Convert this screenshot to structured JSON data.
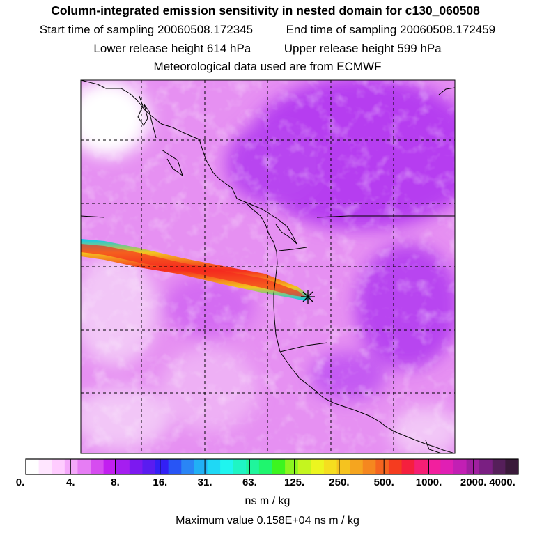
{
  "header": {
    "title": "Column-integrated emission sensitivity in nested domain for c130_060508",
    "start_label": "Start time of sampling",
    "start_value": "20060508.172345",
    "end_label": "End time of sampling",
    "end_value": "20060508.172459",
    "lower_label": "Lower release height",
    "lower_value": "614 hPa",
    "upper_label": "Upper release height",
    "upper_value": "599 hPa",
    "met_line": "Meteorological data used are from ECMWF"
  },
  "chart_data": {
    "type": "heatmap",
    "title": "Column-integrated emission sensitivity in nested domain for c130_060508",
    "grid": true,
    "grid_style": "dashed",
    "colorbar": {
      "orientation": "horizontal",
      "position": "bottom",
      "units": "ns m / kg",
      "labels": [
        "0.",
        "4.",
        "8.",
        "16.",
        "31.",
        "63.",
        "125.",
        "250.",
        "500.",
        "1000.",
        "2000.",
        "4000."
      ],
      "label_values": [
        0,
        4,
        8,
        16,
        31,
        63,
        125,
        250,
        500,
        1000,
        2000,
        4000
      ],
      "colors": [
        "#ffffff",
        "#ffe6ff",
        "#ffccff",
        "#f4a8fa",
        "#e67df4",
        "#d64cf0",
        "#c21ff0",
        "#a51ef0",
        "#7c19f0",
        "#5a1cf0",
        "#3320f5",
        "#2855f5",
        "#2a85f5",
        "#21b0f5",
        "#1fd8f5",
        "#1ff5ef",
        "#1ff5c4",
        "#1ff59c",
        "#1ff56e",
        "#3cf51f",
        "#8cf51f",
        "#c4f51f",
        "#ecf51f",
        "#f5de1f",
        "#f5c31f",
        "#f5a51f",
        "#f5871f",
        "#f5641f",
        "#f53c1f",
        "#f51f3e",
        "#f51f74",
        "#f21f9e",
        "#e01fb4",
        "#c21fb4",
        "#a01fa0",
        "#7a1f82",
        "#551f5a",
        "#3a1a3a"
      ]
    },
    "release_point_marker": "asterisk",
    "maximum_label": "Maximum value",
    "maximum_value": "0.158E+04",
    "maximum_units": "ns m / kg"
  }
}
